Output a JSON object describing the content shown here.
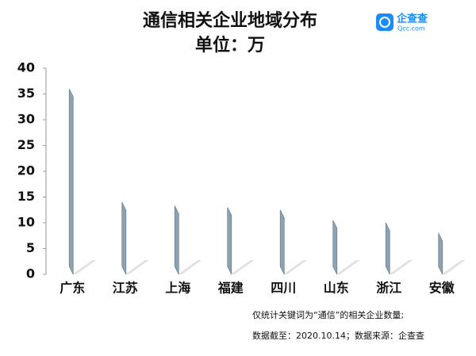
{
  "chart_data": {
    "type": "bar",
    "title": "通信相关企业地域分布",
    "subtitle": "单位：万",
    "logo": {
      "name": "企查查",
      "url": "Qcc.com"
    },
    "categories": [
      "广东",
      "江苏",
      "上海",
      "福建",
      "四川",
      "山东",
      "浙江",
      "安徽"
    ],
    "values": [
      36,
      14,
      13.3,
      13,
      12.5,
      10.5,
      10,
      8
    ],
    "color": "#8ea3b0",
    "ylim": [
      0,
      40
    ],
    "yticks": [
      0,
      5,
      10,
      15,
      20,
      25,
      30,
      35,
      40
    ],
    "notes": [
      "仅统计关键词为“通信”的相关企业数量;",
      "数据截至：2020.10.14；数据来源：企查查"
    ]
  }
}
